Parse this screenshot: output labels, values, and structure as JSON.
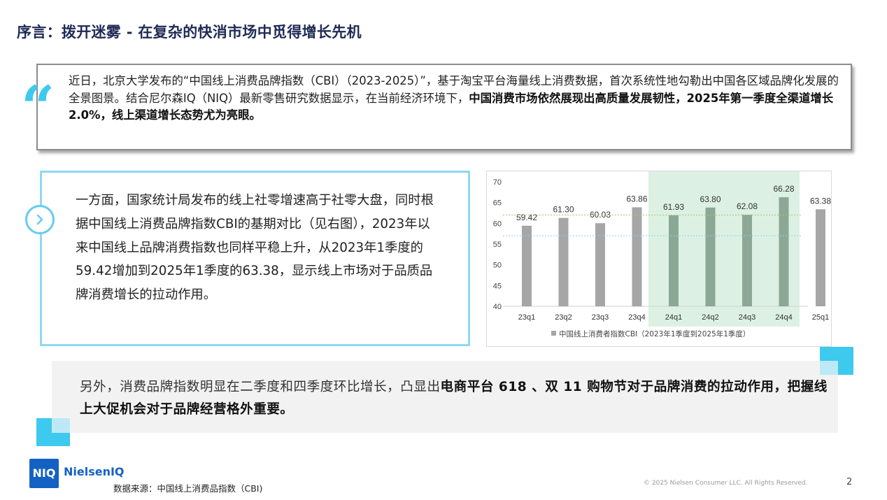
{
  "title": "序言：拨开迷雾 - 在复杂的快消市场中觅得增长先机",
  "quote": {
    "mark": "“",
    "text_plain": "近日，北京大学发布的“中国线上消费品牌指数（CBI）（2023-2025）”，基于淘宝平台海量线上消费数据，首次系统性地勾勒出中国各区域品牌化发展的全景图景。结合尼尔森IQ（NIQ）最新零售研究数据显示，在当前经济环境下，",
    "text_bold": "中国消费市场依然展现出高质量发展韧性，2025年第一季度全渠道增长2.0%，线上渠道增长态势尤为亮眼。"
  },
  "left_panel": {
    "text": "一方面，国家统计局发布的线上社零增速高于社零大盘，同时根据中国线上消费品牌指数CBI的基期对比（见右图），2023年以来中国线上品牌消费指数也同样平稳上升，从2023年1季度的59.42增加到2025年1季度的63.38，显示线上市场对于品质品牌消费增长的拉动作用。"
  },
  "chart_data": {
    "type": "bar",
    "categories": [
      "23q1",
      "23q2",
      "23q3",
      "23q4",
      "24q1",
      "24q2",
      "24q3",
      "24q4",
      "25q1"
    ],
    "series": [
      {
        "name": "中国线上消费者指数CBI（2023年1季度到2025年1季度）",
        "values": [
          59.42,
          61.3,
          60.03,
          63.86,
          61.93,
          63.8,
          62.08,
          66.28,
          63.38
        ]
      }
    ],
    "value_labels": [
      "59.42",
      "61.30",
      "60.03",
      "63.86",
      "61.93",
      "63.80",
      "62.08",
      "66.28",
      "63.38"
    ],
    "y_ticks": [
      "70",
      "65",
      "60",
      "55",
      "50",
      "45",
      "40"
    ],
    "ylim": [
      40,
      70
    ],
    "highlight_range": [
      "24q1",
      "24q4"
    ],
    "reference_lines": [
      {
        "value": 62,
        "color": "#a6c86a"
      },
      {
        "value": 57,
        "color": "#8fd0f0"
      }
    ],
    "bar_color": "#a6a6a6",
    "highlight_bar_color": "#8ca795",
    "highlight_bg": "#dcf1e3",
    "legend_position": "bottom",
    "grid": false
  },
  "bottom": {
    "text_plain": "另外，消费品牌指数明显在二季度和四季度环比增长，凸显出",
    "text_bold": "电商平台 618 、双 11 购物节对于品牌消费的拉动作用，把握线上大促机会对于品牌经营格外重要。"
  },
  "footer": {
    "source": "数据来源：中国线上消费品指数（CBI)",
    "logo_mark": "NIQ",
    "logo_name": "NielsenIQ",
    "copyright": "© 2025 Nielsen Consumer LLC. All Rights Reserved.",
    "page": "2"
  },
  "colors": {
    "title": "#1f2a55",
    "accent_blue": "#3ec9ee",
    "brand_blue": "#1561c3"
  }
}
